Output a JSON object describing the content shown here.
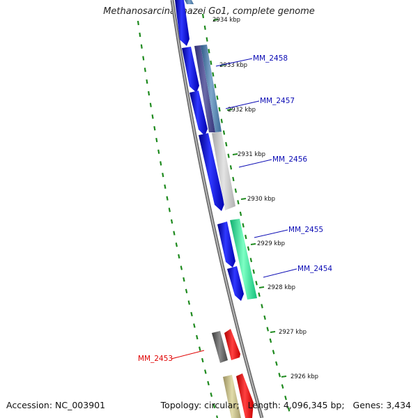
{
  "title": "Methanosarcina mazei Go1, complete genome",
  "accession": "Accession: NC_003901",
  "summary": {
    "topology": "Topology: circular;",
    "length": "Length: 4,096,345 bp;",
    "genes": "Genes: 3,434"
  },
  "colors": {
    "forward_strand": "#0b12e6",
    "backbone": "#7a7a7a",
    "tick": "#1e8a1e",
    "label_blue": "#0a0ab4",
    "label_red": "#e00000"
  },
  "ticks": [
    "2934 kbp",
    "2933 kbp",
    "2932 kbp",
    "2931 kbp",
    "2930 kbp",
    "2929 kbp",
    "2928 kbp",
    "2927 kbp",
    "2926 kbp"
  ],
  "gene_labels": [
    {
      "name": "MM_2458",
      "color": "#0a0ab4"
    },
    {
      "name": "MM_2457",
      "color": "#0a0ab4"
    },
    {
      "name": "MM_2456",
      "color": "#0a0ab4"
    },
    {
      "name": "MM_2455",
      "color": "#0a0ab4"
    },
    {
      "name": "MM_2454",
      "color": "#0a0ab4"
    },
    {
      "name": "MM_2453",
      "color": "#e00000"
    }
  ]
}
